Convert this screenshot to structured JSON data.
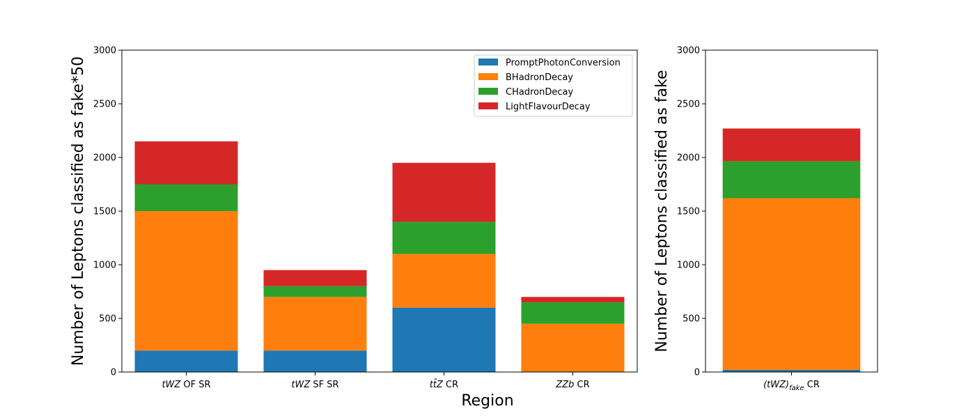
{
  "chart_data": [
    {
      "type": "bar",
      "stacked": true,
      "categories": [
        {
          "math": "tWZ",
          "suffix": " OF SR"
        },
        {
          "math": "tWZ",
          "suffix": " SF SR"
        },
        {
          "math": "tt̄Z",
          "suffix": " CR"
        },
        {
          "math": "ZZb",
          "suffix": " CR"
        }
      ],
      "series": [
        {
          "name": "PromptPhotonConversion",
          "color": "#1f77b4",
          "values": [
            200,
            200,
            600,
            0
          ]
        },
        {
          "name": "BHadronDecay",
          "color": "#ff7f0e",
          "values": [
            1300,
            500,
            500,
            450
          ]
        },
        {
          "name": "CHadronDecay",
          "color": "#2ca02c",
          "values": [
            250,
            100,
            300,
            200
          ]
        },
        {
          "name": "LightFlavourDecay",
          "color": "#d62728",
          "values": [
            400,
            150,
            550,
            50
          ]
        }
      ],
      "xlabel": "Region",
      "ylabel": "Number of Leptons classified as fake*50",
      "ylim": [
        0,
        3000
      ],
      "yticks": [
        0,
        500,
        1000,
        1500,
        2000,
        2500,
        3000
      ],
      "legend": "top-right"
    },
    {
      "type": "bar",
      "stacked": true,
      "categories": [
        {
          "math": "(tWZ)",
          "sub": "fake",
          "suffix": " CR"
        }
      ],
      "series": [
        {
          "name": "PromptPhotonConversion",
          "color": "#1f77b4",
          "values": [
            20
          ]
        },
        {
          "name": "BHadronDecay",
          "color": "#ff7f0e",
          "values": [
            1600
          ]
        },
        {
          "name": "CHadronDecay",
          "color": "#2ca02c",
          "values": [
            345
          ]
        },
        {
          "name": "LightFlavourDecay",
          "color": "#d62728",
          "values": [
            305
          ]
        }
      ],
      "ylabel": "Number of Leptons classified as fake",
      "ylim": [
        0,
        3000
      ],
      "yticks": [
        0,
        500,
        1000,
        1500,
        2000,
        2500,
        3000
      ]
    }
  ]
}
